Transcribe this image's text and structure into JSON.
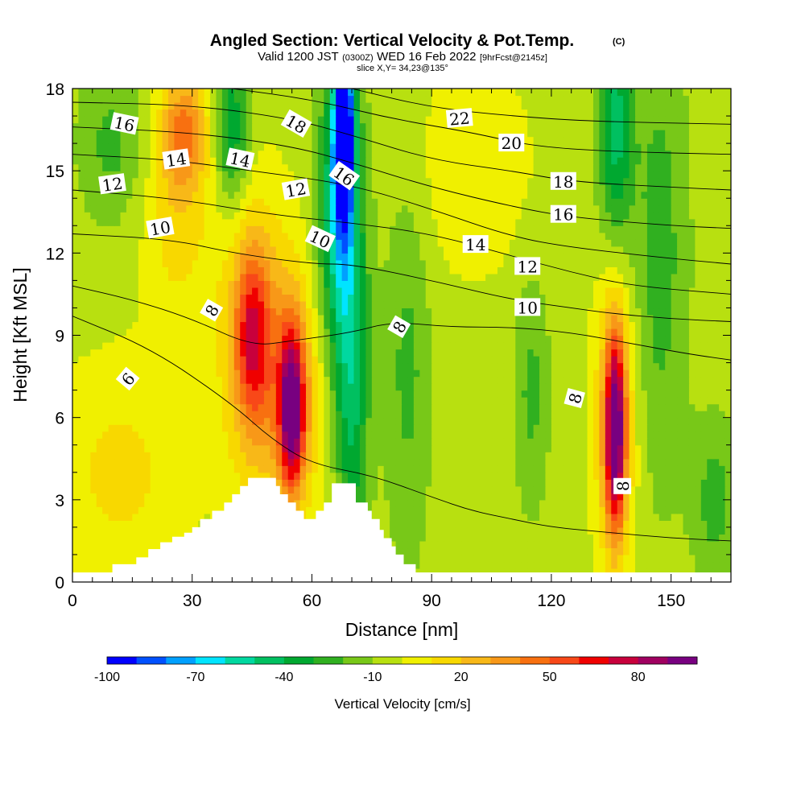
{
  "header": {
    "title": "Angled Section: Vertical Velocity & Pot.Temp.",
    "title_mark": "(C)",
    "valid_prefix": "Valid 1200 JST",
    "valid_utc": "(0300Z)",
    "valid_date": "WED 16 Feb 2022",
    "forecast": "[9hrFcst@2145z]",
    "slice": "slice X,Y= 34,23@135°"
  },
  "chart_data": {
    "type": "heatmap",
    "xlabel": "Distance [nm]",
    "ylabel": "Height [Kft MSL]",
    "xlim": [
      0,
      165
    ],
    "ylim": [
      0,
      18
    ],
    "x_ticks": [
      0,
      30,
      60,
      90,
      120,
      150
    ],
    "y_ticks": [
      0,
      3,
      6,
      9,
      12,
      15,
      18
    ],
    "background_value": -5,
    "velocity_features": [
      {
        "x": 28,
        "y": 16.5,
        "sx": 4,
        "sy": 1.5,
        "value": 40
      },
      {
        "x": 26,
        "y": 13.5,
        "sx": 6,
        "sy": 3,
        "value": 20
      },
      {
        "x": 45,
        "y": 9,
        "sx": 3,
        "sy": 2.2,
        "value": 50
      },
      {
        "x": 45,
        "y": 9,
        "sx": 7,
        "sy": 4,
        "value": 25
      },
      {
        "x": 55,
        "y": 6.3,
        "sx": 2.2,
        "sy": 2,
        "value": 90
      },
      {
        "x": 55,
        "y": 7,
        "sx": 7,
        "sy": 3.5,
        "value": 28
      },
      {
        "x": 12,
        "y": 4,
        "sx": 12,
        "sy": 3,
        "value": 18
      },
      {
        "x": 68,
        "y": 16.5,
        "sx": 1.8,
        "sy": 2.5,
        "value": -100
      },
      {
        "x": 67,
        "y": 13,
        "sx": 4,
        "sy": 4,
        "value": -50
      },
      {
        "x": 70,
        "y": 6.5,
        "sx": 3,
        "sy": 4,
        "value": -35
      },
      {
        "x": 40,
        "y": 16.5,
        "sx": 3,
        "sy": 2,
        "value": -35
      },
      {
        "x": 10,
        "y": 16,
        "sx": 6,
        "sy": 2,
        "value": -18
      },
      {
        "x": 84,
        "y": 8,
        "sx": 4,
        "sy": 5,
        "value": -18
      },
      {
        "x": 136,
        "y": 5.5,
        "sx": 1.8,
        "sy": 2.5,
        "value": 90
      },
      {
        "x": 136,
        "y": 6,
        "sx": 4,
        "sy": 4,
        "value": 30
      },
      {
        "x": 136,
        "y": 16.5,
        "sx": 3,
        "sy": 3,
        "value": -40
      },
      {
        "x": 147,
        "y": 12,
        "sx": 5,
        "sy": 6,
        "value": -20
      },
      {
        "x": 161,
        "y": 3,
        "sx": 4,
        "sy": 2,
        "value": -20
      },
      {
        "x": 115,
        "y": 7,
        "sx": 3,
        "sy": 3,
        "value": -18
      },
      {
        "x": 100,
        "y": 15,
        "sx": 12,
        "sy": 3,
        "value": 12
      }
    ],
    "theta_isentropes": [
      {
        "value": 6,
        "points": [
          [
            0,
            9.7
          ],
          [
            20,
            8.5
          ],
          [
            40,
            6.5
          ],
          [
            50,
            5.2
          ],
          [
            60,
            4.3
          ],
          [
            75,
            3.9
          ],
          [
            90,
            3.1
          ],
          [
            100,
            2.6
          ],
          [
            110,
            2.3
          ],
          [
            120,
            2.0
          ],
          [
            135,
            1.8
          ],
          [
            150,
            1.6
          ],
          [
            165,
            1.5
          ]
        ]
      },
      {
        "value": 8,
        "points": [
          [
            0,
            10.8
          ],
          [
            15,
            10.3
          ],
          [
            30,
            9.6
          ],
          [
            45,
            8.6
          ],
          [
            55,
            8.8
          ],
          [
            70,
            9.1
          ],
          [
            80,
            9.5
          ],
          [
            95,
            9.3
          ],
          [
            110,
            9.3
          ],
          [
            125,
            9.1
          ],
          [
            140,
            8.7
          ],
          [
            155,
            8.3
          ],
          [
            165,
            8.1
          ]
        ]
      },
      {
        "value": 10,
        "points": [
          [
            0,
            12.7
          ],
          [
            25,
            12.5
          ],
          [
            40,
            12.0
          ],
          [
            60,
            11.6
          ],
          [
            70,
            11.6
          ],
          [
            90,
            11.0
          ],
          [
            110,
            10.3
          ],
          [
            125,
            10.0
          ],
          [
            135,
            9.8
          ],
          [
            150,
            9.6
          ],
          [
            165,
            9.5
          ]
        ]
      },
      {
        "value": 12,
        "points": [
          [
            0,
            14.3
          ],
          [
            25,
            14.0
          ],
          [
            50,
            13.4
          ],
          [
            70,
            13.1
          ],
          [
            90,
            12.7
          ],
          [
            110,
            11.9
          ],
          [
            125,
            11.3
          ],
          [
            140,
            10.8
          ],
          [
            165,
            10.5
          ]
        ]
      },
      {
        "value": 14,
        "points": [
          [
            0,
            15.6
          ],
          [
            25,
            15.4
          ],
          [
            45,
            15.0
          ],
          [
            70,
            14.5
          ],
          [
            90,
            13.6
          ],
          [
            110,
            12.6
          ],
          [
            125,
            12.2
          ],
          [
            150,
            11.8
          ],
          [
            165,
            11.6
          ]
        ]
      },
      {
        "value": 16,
        "points": [
          [
            0,
            16.6
          ],
          [
            30,
            16.4
          ],
          [
            55,
            15.9
          ],
          [
            70,
            15.3
          ],
          [
            90,
            14.4
          ],
          [
            110,
            13.7
          ],
          [
            125,
            13.3
          ],
          [
            150,
            13.0
          ],
          [
            165,
            12.9
          ]
        ]
      },
      {
        "value": 18,
        "points": [
          [
            0,
            17.5
          ],
          [
            30,
            17.4
          ],
          [
            55,
            16.9
          ],
          [
            70,
            16.3
          ],
          [
            90,
            15.4
          ],
          [
            110,
            15.0
          ],
          [
            125,
            14.6
          ],
          [
            150,
            14.4
          ],
          [
            165,
            14.3
          ]
        ]
      },
      {
        "value": 20,
        "points": [
          [
            40,
            18.0
          ],
          [
            60,
            17.6
          ],
          [
            80,
            16.9
          ],
          [
            100,
            16.4
          ],
          [
            115,
            15.9
          ],
          [
            135,
            15.7
          ],
          [
            165,
            15.6
          ]
        ]
      },
      {
        "value": 22,
        "points": [
          [
            70,
            18.0
          ],
          [
            90,
            17.3
          ],
          [
            110,
            17.0
          ],
          [
            130,
            16.8
          ],
          [
            165,
            16.7
          ]
        ]
      }
    ],
    "contour_labels": [
      {
        "text": "16",
        "x": 13,
        "y": 16.7,
        "rot": 12
      },
      {
        "text": "14",
        "x": 26,
        "y": 15.4,
        "rot": -8
      },
      {
        "text": "14",
        "x": 42,
        "y": 15.4,
        "rot": 12
      },
      {
        "text": "18",
        "x": 56,
        "y": 16.7,
        "rot": 30
      },
      {
        "text": "12",
        "x": 10,
        "y": 14.5,
        "rot": -8
      },
      {
        "text": "12",
        "x": 56,
        "y": 14.3,
        "rot": -10
      },
      {
        "text": "16",
        "x": 68,
        "y": 14.8,
        "rot": 35
      },
      {
        "text": "22",
        "x": 97,
        "y": 16.9,
        "rot": -5
      },
      {
        "text": "20",
        "x": 110,
        "y": 16.0,
        "rot": 0
      },
      {
        "text": "18",
        "x": 123,
        "y": 14.6,
        "rot": 0
      },
      {
        "text": "16",
        "x": 123,
        "y": 13.4,
        "rot": 0
      },
      {
        "text": "10",
        "x": 22,
        "y": 12.9,
        "rot": -10
      },
      {
        "text": "10",
        "x": 62,
        "y": 12.5,
        "rot": 25
      },
      {
        "text": "14",
        "x": 101,
        "y": 12.3,
        "rot": 0
      },
      {
        "text": "12",
        "x": 114,
        "y": 11.5,
        "rot": 0
      },
      {
        "text": "10",
        "x": 114,
        "y": 10.0,
        "rot": 0
      },
      {
        "text": "8",
        "x": 35,
        "y": 9.9,
        "rot": -60
      },
      {
        "text": "8",
        "x": 82,
        "y": 9.3,
        "rot": -60
      },
      {
        "text": "6",
        "x": 14,
        "y": 7.4,
        "rot": -50
      },
      {
        "text": "8",
        "x": 126,
        "y": 6.7,
        "rot": -75
      },
      {
        "text": "8",
        "x": 138,
        "y": 3.5,
        "rot": -90
      }
    ],
    "terrain": [
      [
        0,
        0.35
      ],
      [
        10,
        0.35
      ],
      [
        10,
        0.65
      ],
      [
        14,
        0.65
      ],
      [
        14,
        0.65
      ],
      [
        16,
        0.65
      ],
      [
        16,
        0.9
      ],
      [
        19,
        0.9
      ],
      [
        19,
        1.2
      ],
      [
        22,
        1.2
      ],
      [
        22,
        1.45
      ],
      [
        25,
        1.45
      ],
      [
        25,
        1.65
      ],
      [
        28,
        1.65
      ],
      [
        28,
        1.8
      ],
      [
        30,
        1.8
      ],
      [
        30,
        2.0
      ],
      [
        32,
        2.0
      ],
      [
        32,
        2.3
      ],
      [
        35,
        2.3
      ],
      [
        35,
        2.6
      ],
      [
        38,
        2.6
      ],
      [
        38,
        2.9
      ],
      [
        40,
        2.9
      ],
      [
        40,
        3.2
      ],
      [
        42,
        3.2
      ],
      [
        42,
        3.5
      ],
      [
        44,
        3.5
      ],
      [
        44,
        3.8
      ],
      [
        51,
        3.8
      ],
      [
        51,
        3.5
      ],
      [
        52,
        3.5
      ],
      [
        52,
        3.2
      ],
      [
        54,
        3.2
      ],
      [
        54,
        2.9
      ],
      [
        56,
        2.9
      ],
      [
        56,
        2.6
      ],
      [
        58,
        2.6
      ],
      [
        58,
        2.3
      ],
      [
        61,
        2.3
      ],
      [
        61,
        2.6
      ],
      [
        63,
        2.6
      ],
      [
        63,
        2.9
      ],
      [
        65,
        2.9
      ],
      [
        65,
        3.6
      ],
      [
        71,
        3.6
      ],
      [
        71,
        2.9
      ],
      [
        74,
        2.9
      ],
      [
        74,
        2.6
      ],
      [
        75,
        2.6
      ],
      [
        75,
        2.3
      ],
      [
        77,
        2.3
      ],
      [
        77,
        1.9
      ],
      [
        78,
        1.9
      ],
      [
        78,
        1.6
      ],
      [
        80,
        1.6
      ],
      [
        80,
        1.3
      ],
      [
        81,
        1.3
      ],
      [
        81,
        1.0
      ],
      [
        83,
        1.0
      ],
      [
        83,
        0.65
      ],
      [
        86,
        0.65
      ],
      [
        86,
        0.35
      ],
      [
        89,
        0.35
      ],
      [
        89,
        0.35
      ],
      [
        165,
        0.35
      ]
    ]
  },
  "colorbar": {
    "label": "Vertical Velocity [cm/s]",
    "levels": [
      -100,
      -90,
      -80,
      -70,
      -60,
      -50,
      -40,
      -30,
      -20,
      -10,
      0,
      10,
      20,
      30,
      40,
      50,
      60,
      70,
      80,
      90
    ],
    "colors": [
      "#0000ff",
      "#0050ff",
      "#00a0ff",
      "#00e4ff",
      "#00d8a0",
      "#00c060",
      "#00a830",
      "#30b020",
      "#78c818",
      "#b8e010",
      "#f0f000",
      "#f8d800",
      "#f8b818",
      "#f89818",
      "#f87010",
      "#f84818",
      "#f00000",
      "#c8003c",
      "#a00060",
      "#780080"
    ],
    "tick_labels": [
      "-100",
      "-70",
      "-40",
      "-10",
      "20",
      "50",
      "80"
    ],
    "tick_values": [
      -100,
      -70,
      -40,
      -10,
      20,
      50,
      80
    ]
  }
}
